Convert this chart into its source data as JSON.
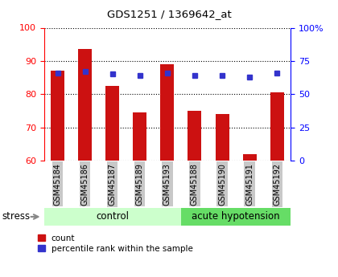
{
  "title": "GDS1251 / 1369642_at",
  "samples": [
    "GSM45184",
    "GSM45186",
    "GSM45187",
    "GSM45189",
    "GSM45193",
    "GSM45188",
    "GSM45190",
    "GSM45191",
    "GSM45192"
  ],
  "counts": [
    87.0,
    93.5,
    82.5,
    74.5,
    89.0,
    75.0,
    74.0,
    62.0,
    80.5
  ],
  "percentiles": [
    66,
    67,
    65,
    64,
    66,
    64,
    64,
    63,
    66
  ],
  "bar_color": "#cc1111",
  "dot_color": "#3333cc",
  "ylim_left": [
    60,
    100
  ],
  "ylim_right": [
    0,
    100
  ],
  "yticks_left": [
    60,
    70,
    80,
    90,
    100
  ],
  "yticks_right": [
    0,
    25,
    50,
    75,
    100
  ],
  "ytick_labels_right": [
    "0",
    "25",
    "50",
    "75",
    "100%"
  ],
  "control_label": "control",
  "acute_label": "acute hypotension",
  "stress_label": "stress",
  "legend_count": "count",
  "legend_percentile": "percentile rank within the sample",
  "bg_color": "#ffffff",
  "tick_bg_color": "#c8c8c8",
  "control_bg": "#ccffcc",
  "acute_bg": "#66dd66",
  "bar_width": 0.5
}
